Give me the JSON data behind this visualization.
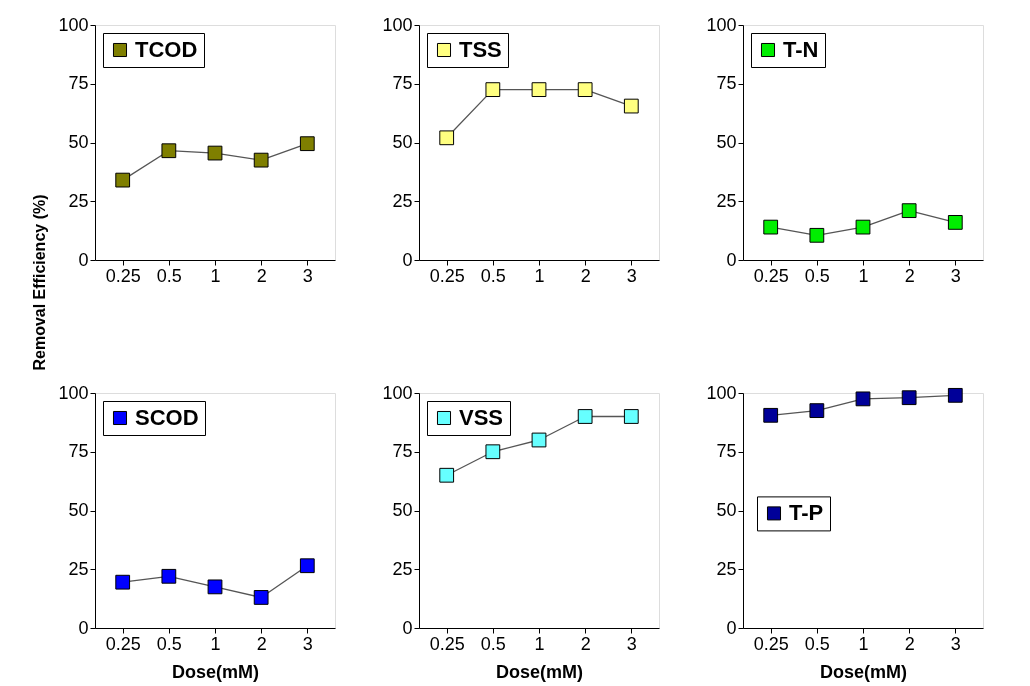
{
  "chart_data": [
    {
      "type": "line",
      "categories": [
        "0.25",
        "0.5",
        "1",
        "2",
        "3"
      ],
      "ylabel": "Removal Efficiency (%)",
      "ylim": [
        0,
        100
      ],
      "yticks": [
        0,
        25,
        50,
        75,
        100
      ],
      "marker": "square",
      "legend": "top left",
      "grid": false,
      "series": [
        {
          "name": "TCOD",
          "color": "#7f7f00",
          "values": [
            34,
            46.5,
            45.5,
            42.5,
            49.5
          ]
        }
      ]
    },
    {
      "type": "line",
      "categories": [
        "0.25",
        "0.5",
        "1",
        "2",
        "3"
      ],
      "ylim": [
        0,
        100
      ],
      "yticks": [
        0,
        25,
        50,
        75,
        100
      ],
      "marker": "square",
      "legend": "top left",
      "grid": false,
      "series": [
        {
          "name": "TSS",
          "color": "#ffff80",
          "values": [
            52,
            72.5,
            72.5,
            72.5,
            65.5
          ]
        }
      ]
    },
    {
      "type": "line",
      "categories": [
        "0.25",
        "0.5",
        "1",
        "2",
        "3"
      ],
      "ylim": [
        0,
        100
      ],
      "yticks": [
        0,
        25,
        50,
        75,
        100
      ],
      "marker": "square",
      "legend": "top left",
      "grid": false,
      "series": [
        {
          "name": "T-N",
          "color": "#00ee00",
          "values": [
            14,
            10.5,
            14,
            21,
            16
          ]
        }
      ]
    },
    {
      "type": "line",
      "categories": [
        "0.25",
        "0.5",
        "1",
        "2",
        "3"
      ],
      "xlabel": "Dose(mM)",
      "ylim": [
        0,
        100
      ],
      "yticks": [
        0,
        25,
        50,
        75,
        100
      ],
      "marker": "square",
      "legend": "top left",
      "grid": false,
      "series": [
        {
          "name": "SCOD",
          "color": "#0000ff",
          "values": [
            19.5,
            22,
            17.5,
            13,
            26.5
          ]
        }
      ]
    },
    {
      "type": "line",
      "categories": [
        "0.25",
        "0.5",
        "1",
        "2",
        "3"
      ],
      "xlabel": "Dose(mM)",
      "ylim": [
        0,
        100
      ],
      "yticks": [
        0,
        25,
        50,
        75,
        100
      ],
      "marker": "square",
      "legend": "top left",
      "grid": false,
      "series": [
        {
          "name": "VSS",
          "color": "#66ffff",
          "values": [
            65,
            75,
            80,
            90,
            90
          ]
        }
      ]
    },
    {
      "type": "line",
      "categories": [
        "0.25",
        "0.5",
        "1",
        "2",
        "3"
      ],
      "xlabel": "Dose(mM)",
      "ylim": [
        0,
        100
      ],
      "yticks": [
        0,
        25,
        50,
        75,
        100
      ],
      "marker": "square",
      "legend": "left",
      "grid": false,
      "series": [
        {
          "name": "T-P",
          "color": "#000099",
          "values": [
            90.5,
            92.5,
            97.5,
            98,
            99
          ]
        }
      ]
    }
  ]
}
